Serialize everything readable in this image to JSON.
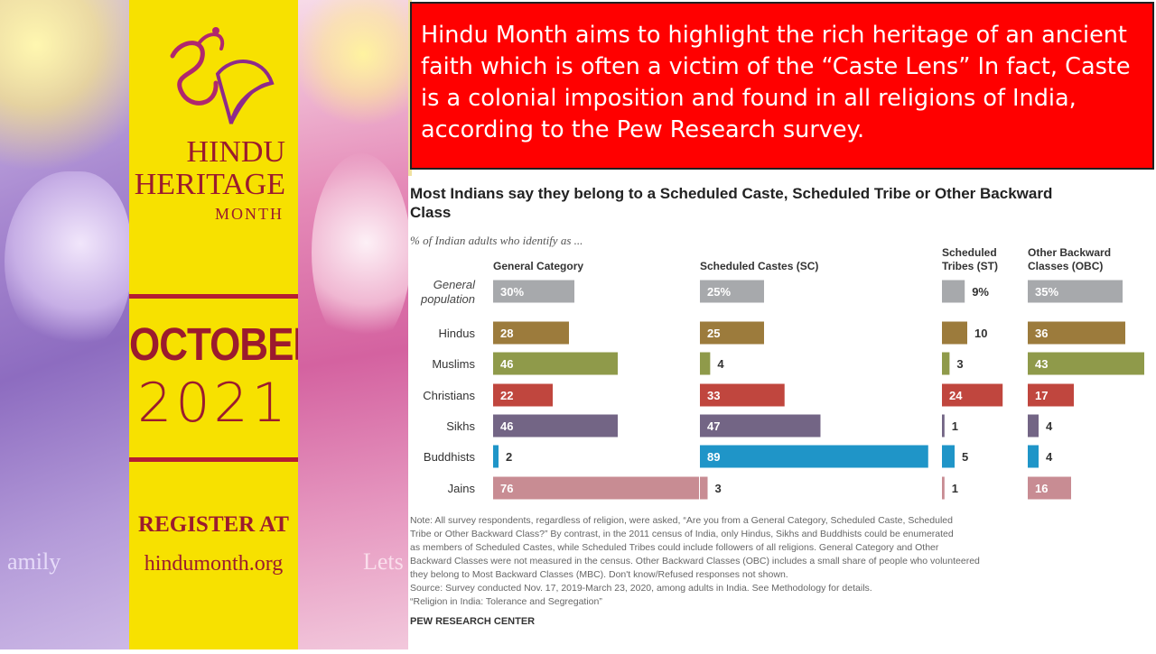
{
  "poster": {
    "brand_line1": "HINDU",
    "brand_line2": "HERITAGE",
    "brand_line3": "MONTH",
    "month": "OCTOBER",
    "year": "2021",
    "register": "REGISTER AT",
    "url": "hindumonth.org",
    "left_caption": "amily",
    "right_caption": "Lets"
  },
  "colors": {
    "poster_yellow": "#f7e100",
    "poster_maroon": "#9b1b2e",
    "banner_red": "#ff0000"
  },
  "banner": {
    "text": "Hindu Month aims to highlight the rich heritage of an ancient faith which is often a victim of the “Caste Lens”  In fact, Caste is  a colonial imposition and found in all religions of India, according to the Pew Research survey."
  },
  "chart_data": {
    "type": "bar",
    "title": "Most Indians say they belong to a Scheduled Caste, Scheduled Tribe or Other Backward Class",
    "subtitle": "% of Indian adults who identify as ...",
    "categories": [
      "General population",
      "Hindus",
      "Muslims",
      "Christians",
      "Sikhs",
      "Buddhists",
      "Jains"
    ],
    "series": [
      {
        "name": "General Category",
        "values": [
          30,
          28,
          46,
          22,
          46,
          2,
          76
        ],
        "labels": [
          "30%",
          "28",
          "46",
          "22",
          "46",
          "2",
          "76"
        ]
      },
      {
        "name": "Scheduled Castes (SC)",
        "values": [
          25,
          25,
          4,
          33,
          47,
          89,
          3
        ],
        "labels": [
          "25%",
          "25",
          "4",
          "33",
          "47",
          "89",
          "3"
        ]
      },
      {
        "name": "Scheduled Tribes (ST)",
        "values": [
          9,
          10,
          3,
          24,
          1,
          5,
          1
        ],
        "labels": [
          "9%",
          "10",
          "3",
          "24",
          "1",
          "5",
          "1"
        ]
      },
      {
        "name": "Other Backward Classes (OBC)",
        "values": [
          35,
          36,
          43,
          17,
          4,
          4,
          16
        ],
        "labels": [
          "35%",
          "36",
          "43",
          "17",
          "4",
          "4",
          "16"
        ]
      }
    ],
    "row_colors": [
      "#a7a9ac",
      "#9c7b3c",
      "#8f9a4a",
      "#c0463e",
      "#736585",
      "#1f95c8",
      "#c88c93"
    ],
    "note": "Note: All survey respondents, regardless of religion, were asked, “Are you from a General Category, Scheduled Caste, Scheduled Tribe or Other Backward Class?” By contrast, in the 2011 census of India, only Hindus, Sikhs and Buddhists could be enumerated as members of Scheduled Castes, while Scheduled Tribes could include followers of all religions. General Category and Other Backward Classes were not measured in the census. Other Backward Classes (OBC) includes a small share of people who volunteered they belong to Most Backward Classes (MBC). Don't know/Refused responses not shown.",
    "source": "Source: Survey conducted Nov. 17, 2019-March 23, 2020, among adults in India. See Methodology for details.",
    "report": "“Religion in India: Tolerance and Segregation”",
    "brand": "PEW RESEARCH CENTER"
  }
}
